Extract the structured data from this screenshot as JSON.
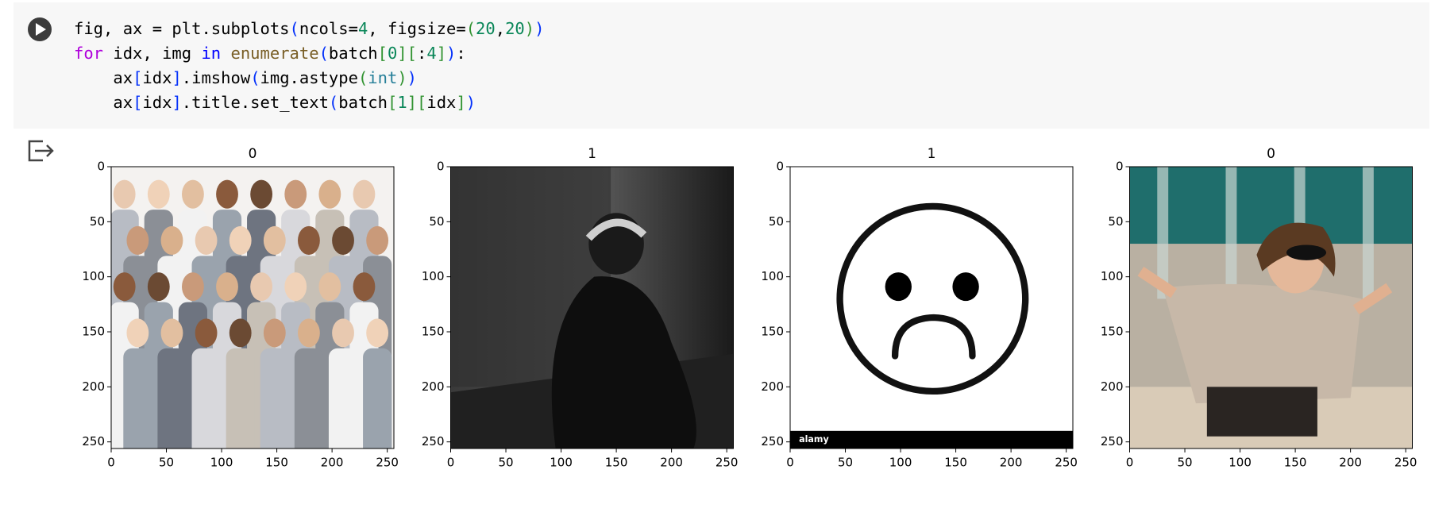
{
  "code": {
    "lines": [
      [
        {
          "text": "fig, ax = plt.subplots",
          "color": "#000000"
        },
        {
          "text": "(",
          "color": "#0431fa"
        },
        {
          "text": "ncols=",
          "color": "#000000"
        },
        {
          "text": "4",
          "color": "#098658"
        },
        {
          "text": ", figsize=",
          "color": "#000000"
        },
        {
          "text": "(",
          "color": "#319331"
        },
        {
          "text": "20",
          "color": "#098658"
        },
        {
          "text": ",",
          "color": "#000000"
        },
        {
          "text": "20",
          "color": "#098658"
        },
        {
          "text": ")",
          "color": "#319331"
        },
        {
          "text": ")",
          "color": "#0431fa"
        }
      ],
      [
        {
          "text": "for",
          "color": "#af00db"
        },
        {
          "text": " idx, img ",
          "color": "#000000"
        },
        {
          "text": "in",
          "color": "#0000ff"
        },
        {
          "text": " ",
          "color": "#000000"
        },
        {
          "text": "enumerate",
          "color": "#795e26"
        },
        {
          "text": "(",
          "color": "#0431fa"
        },
        {
          "text": "batch",
          "color": "#000000"
        },
        {
          "text": "[",
          "color": "#319331"
        },
        {
          "text": "0",
          "color": "#098658"
        },
        {
          "text": "][",
          "color": "#319331"
        },
        {
          "text": ":",
          "color": "#000000"
        },
        {
          "text": "4",
          "color": "#098658"
        },
        {
          "text": "]",
          "color": "#319331"
        },
        {
          "text": ")",
          "color": "#0431fa"
        },
        {
          "text": ":",
          "color": "#000000"
        }
      ],
      [
        {
          "text": "    ax",
          "color": "#000000"
        },
        {
          "text": "[",
          "color": "#0431fa"
        },
        {
          "text": "idx",
          "color": "#000000"
        },
        {
          "text": "]",
          "color": "#0431fa"
        },
        {
          "text": ".imshow",
          "color": "#000000"
        },
        {
          "text": "(",
          "color": "#0431fa"
        },
        {
          "text": "img.astype",
          "color": "#000000"
        },
        {
          "text": "(",
          "color": "#319331"
        },
        {
          "text": "int",
          "color": "#267f99"
        },
        {
          "text": ")",
          "color": "#319331"
        },
        {
          "text": ")",
          "color": "#0431fa"
        }
      ],
      [
        {
          "text": "    ax",
          "color": "#000000"
        },
        {
          "text": "[",
          "color": "#0431fa"
        },
        {
          "text": "idx",
          "color": "#000000"
        },
        {
          "text": "]",
          "color": "#0431fa"
        },
        {
          "text": ".title.set_text",
          "color": "#000000"
        },
        {
          "text": "(",
          "color": "#0431fa"
        },
        {
          "text": "batch",
          "color": "#000000"
        },
        {
          "text": "[",
          "color": "#319331"
        },
        {
          "text": "1",
          "color": "#098658"
        },
        {
          "text": "][",
          "color": "#319331"
        },
        {
          "text": "idx",
          "color": "#000000"
        },
        {
          "text": "]",
          "color": "#319331"
        },
        {
          "text": ")",
          "color": "#0431fa"
        }
      ]
    ]
  },
  "output": {
    "figures": [
      {
        "title": "0",
        "xlim": [
          0,
          256
        ],
        "ylim": [
          256,
          0
        ],
        "xticks": [
          0,
          50,
          100,
          150,
          200,
          250
        ],
        "yticks": [
          0,
          50,
          100,
          150,
          200,
          250
        ]
      },
      {
        "title": "1",
        "xlim": [
          0,
          256
        ],
        "ylim": [
          256,
          0
        ],
        "xticks": [
          0,
          50,
          100,
          150,
          200,
          250
        ],
        "yticks": [
          0,
          50,
          100,
          150,
          200,
          250
        ]
      },
      {
        "title": "1",
        "xlim": [
          0,
          256
        ],
        "ylim": [
          256,
          0
        ],
        "xticks": [
          0,
          50,
          100,
          150,
          200,
          250
        ],
        "yticks": [
          0,
          50,
          100,
          150,
          200,
          250
        ],
        "watermark": "alamy"
      },
      {
        "title": "0",
        "xlim": [
          0,
          256
        ],
        "ylim": [
          256,
          0
        ],
        "xticks": [
          0,
          50,
          100,
          150,
          200,
          250
        ],
        "yticks": [
          0,
          50,
          100,
          150,
          200,
          250
        ]
      }
    ]
  }
}
